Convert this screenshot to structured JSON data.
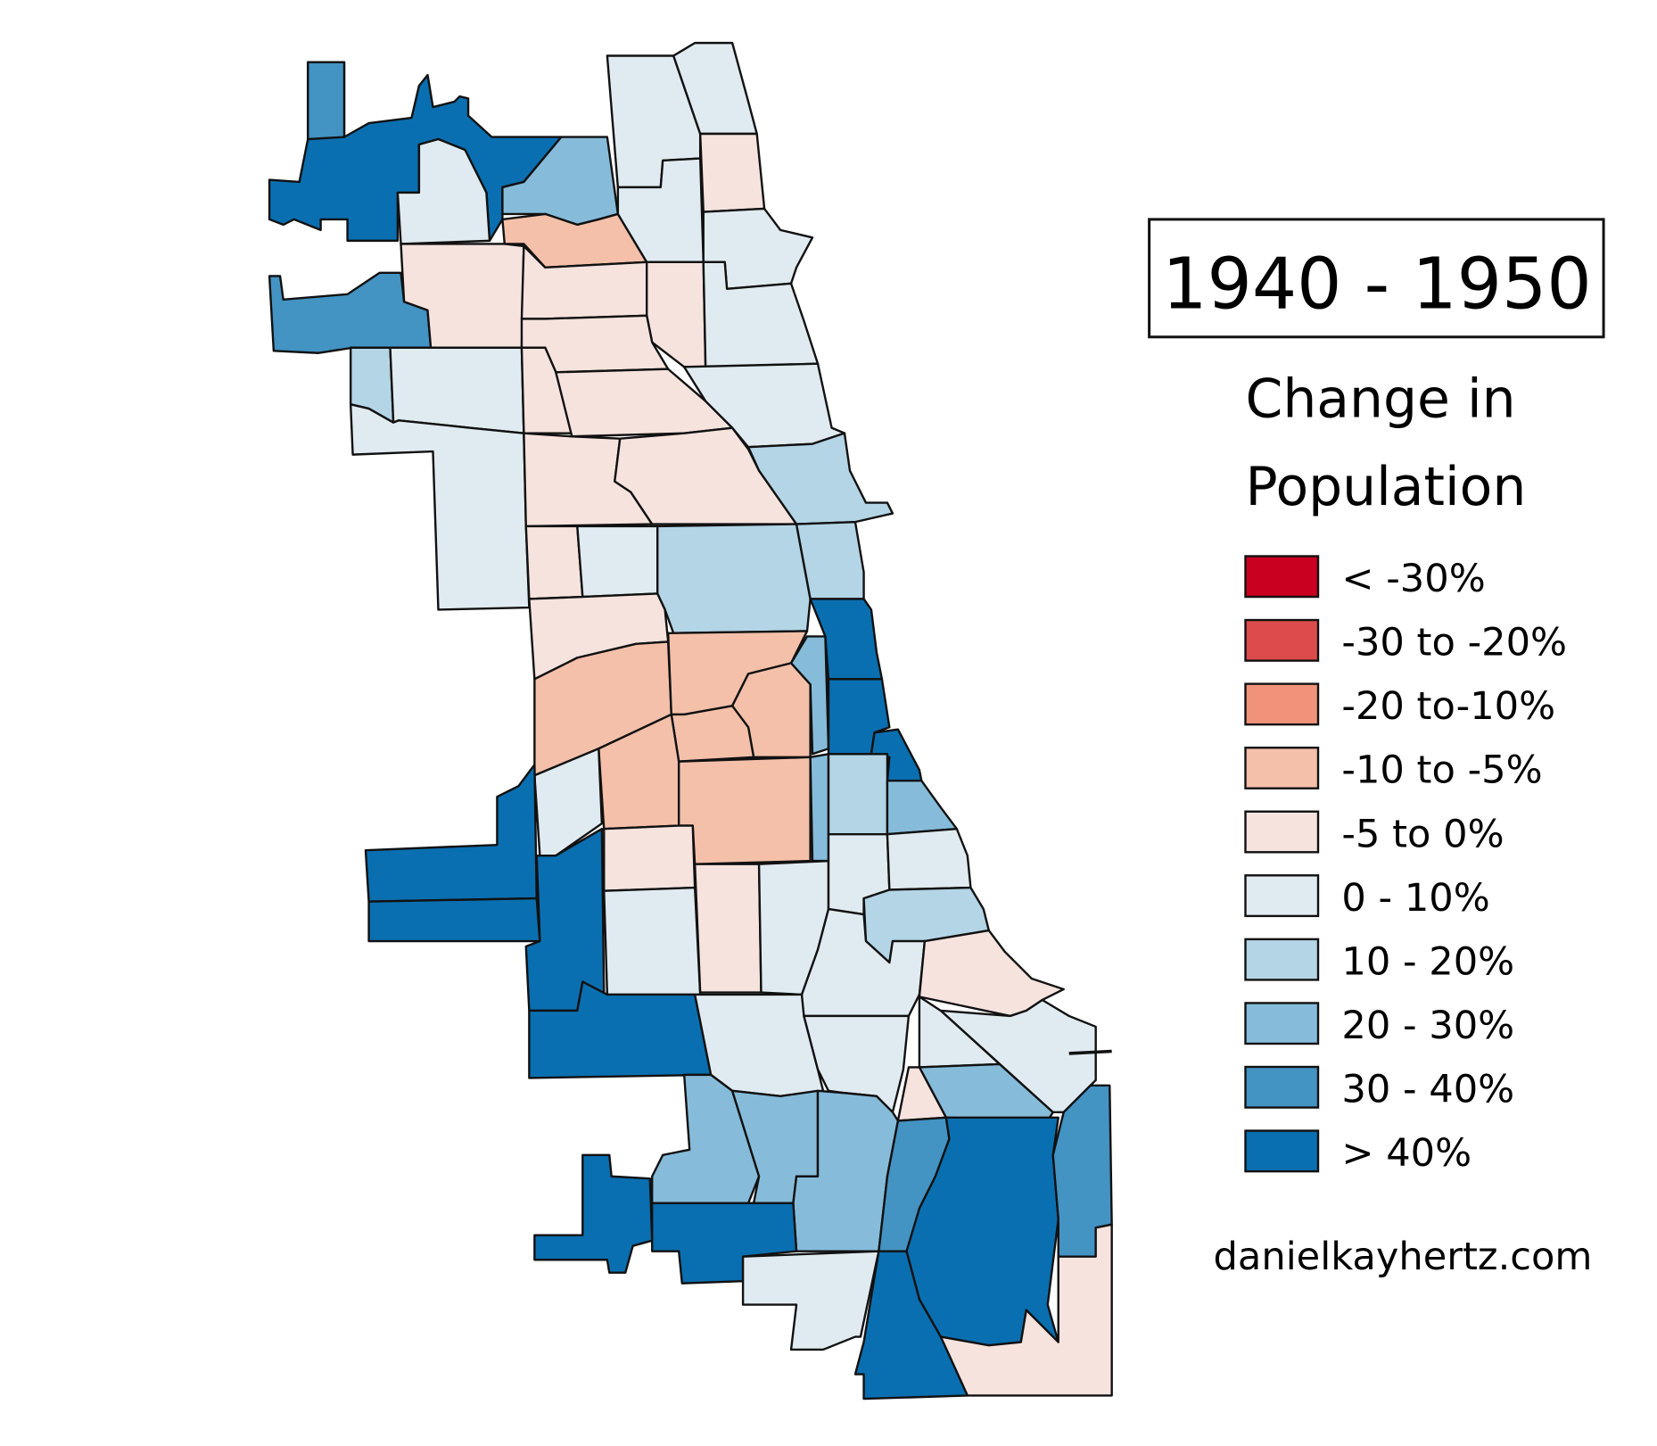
{
  "title": "1940 - 1950",
  "legend": {
    "title_line1": "Change in",
    "title_line2": "Population",
    "items": [
      {
        "label": "< -30%",
        "color": "#ca0020"
      },
      {
        "label": "-30 to -20%",
        "color": "#de4b4d"
      },
      {
        "label": "-20 to-10%",
        "color": "#f0937a"
      },
      {
        "label": "-10 to -5%",
        "color": "#f4c0aa"
      },
      {
        "label": "-5 to 0%",
        "color": "#f6e3de"
      },
      {
        "label": "0 - 10%",
        "color": "#e0ebf1"
      },
      {
        "label": "10 - 20%",
        "color": "#b3d5e6"
      },
      {
        "label": "20 - 30%",
        "color": "#86bcda"
      },
      {
        "label": "30 - 40%",
        "color": "#4393c3"
      },
      {
        "label": "> 40%",
        "color": "#0a6fb0"
      }
    ]
  },
  "credit": "danielkayhertz.com",
  "map": {
    "region_classes": [
      9,
      8,
      7,
      5,
      5,
      5,
      3,
      5,
      4,
      5,
      8,
      4,
      4,
      4,
      5,
      4,
      6,
      5,
      5,
      4,
      4,
      5,
      4,
      4,
      6,
      4,
      5,
      6,
      6,
      4,
      3,
      3,
      9,
      7,
      3,
      3,
      3,
      5,
      9,
      9,
      3,
      7,
      6,
      7,
      9,
      9,
      9,
      4,
      5,
      4,
      5,
      5,
      5,
      6,
      5,
      4,
      9,
      5,
      5,
      5,
      5,
      7,
      4,
      7,
      7,
      7,
      8,
      9,
      8,
      4,
      9,
      9,
      5,
      9
    ]
  }
}
